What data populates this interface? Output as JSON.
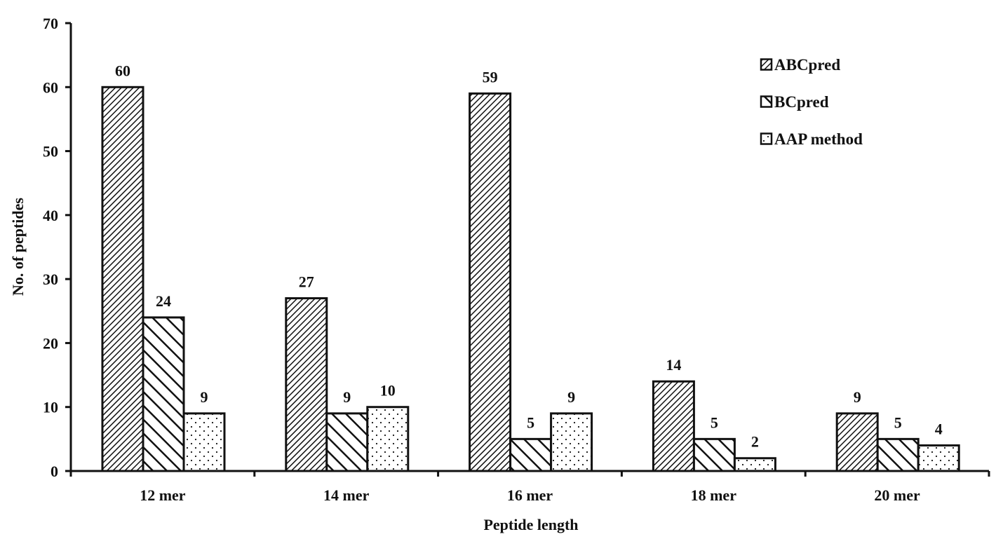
{
  "chart_data": {
    "type": "bar",
    "title": "",
    "xlabel": "Peptide length",
    "ylabel": "No. of peptides",
    "ylim": [
      0,
      70
    ],
    "yticks": [
      0,
      10,
      20,
      30,
      40,
      50,
      60,
      70
    ],
    "grid": false,
    "legend_position": "top-right",
    "categories": [
      "12 mer",
      "14 mer",
      "16 mer",
      "18 mer",
      "20 mer"
    ],
    "series": [
      {
        "name": "ABCpred",
        "pattern": "fine-diagonal-hatch",
        "values": [
          60,
          27,
          59,
          14,
          9
        ]
      },
      {
        "name": "BCpred",
        "pattern": "wide-diagonal-hatch",
        "values": [
          24,
          9,
          5,
          5,
          5
        ]
      },
      {
        "name": "AAP method",
        "pattern": "dots",
        "values": [
          9,
          10,
          9,
          2,
          4
        ]
      }
    ],
    "colors": {
      "ink": "#111111",
      "background": "#ffffff"
    }
  }
}
